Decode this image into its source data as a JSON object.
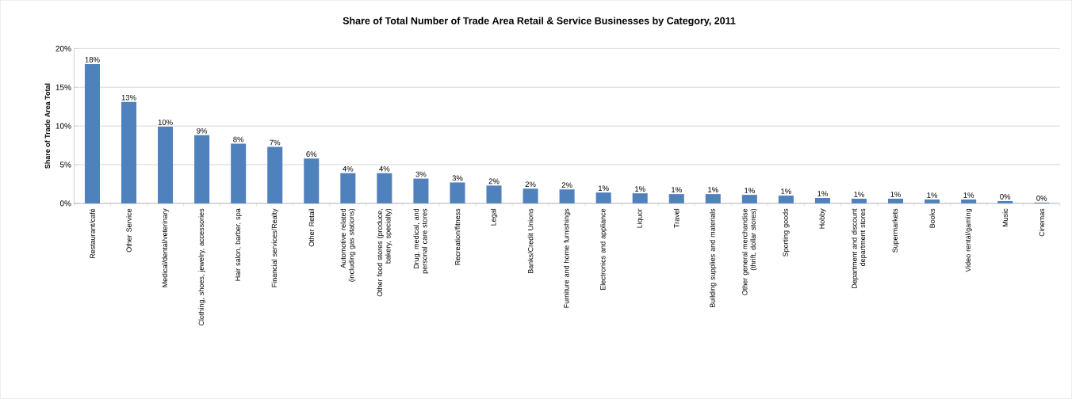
{
  "chart_data": {
    "type": "bar",
    "title": "Share of Total  Number of Trade Area Retail & Service Businesses by Category, 2011",
    "ylabel": "Share of Trade Area Total",
    "categories": [
      "Restaurant/café",
      "Other Service",
      "Medical/dental/veterinary",
      "Clothing, shoes, jewelry, accessories",
      "Hair salon, barber, spa",
      "Financial services/Realty",
      "Other Retail",
      "Automotive related (including gas stations)",
      "Other food stores (produce, bakery, specialty)",
      "Drug, medical, and personal care stores",
      "Recreation/fitness",
      "Legal",
      "Banks/Credit Unions",
      "Furniture and home furnishings",
      "Electronics and appliance",
      "Liquor",
      "Travel",
      "Building supplies and materials",
      "Other general merchandise (thrift, dollar stores)",
      "Sporting goods",
      "Hobby",
      "Department and discount department stores",
      "Supermarkets",
      "Books",
      "Video rental/gaming",
      "Music",
      "Cinemas"
    ],
    "values": [
      18.0,
      13.1,
      9.9,
      8.8,
      7.7,
      7.3,
      5.8,
      3.9,
      3.9,
      3.2,
      2.7,
      2.3,
      1.9,
      1.8,
      1.4,
      1.3,
      1.2,
      1.2,
      1.1,
      1.0,
      0.7,
      0.6,
      0.6,
      0.5,
      0.5,
      0.3,
      0.1
    ],
    "value_labels": [
      "18%",
      "13%",
      "10%",
      "9%",
      "8%",
      "7%",
      "6%",
      "4%",
      "4%",
      "3%",
      "3%",
      "2%",
      "2%",
      "2%",
      "1%",
      "1%",
      "1%",
      "1%",
      "1%",
      "1%",
      "1%",
      "1%",
      "1%",
      "1%",
      "1%",
      "0%",
      "0%"
    ],
    "color": "#4f81bd",
    "ylim": [
      0,
      20
    ],
    "yticks": [
      {
        "value": 0,
        "label": "0%"
      },
      {
        "value": 5,
        "label": "5%"
      },
      {
        "value": 10,
        "label": "10%"
      },
      {
        "value": 15,
        "label": "15%"
      },
      {
        "value": 20,
        "label": "20%"
      }
    ],
    "grid": "y"
  }
}
